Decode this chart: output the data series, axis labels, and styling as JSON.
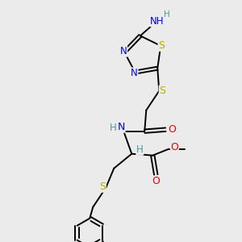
{
  "bg_color": "#ebebeb",
  "atom_colors": {
    "C": "#000000",
    "N": "#0000ee",
    "S": "#bbaa00",
    "O": "#ee0000",
    "H": "#4a9a9a"
  },
  "bond_color": "#000000",
  "font_size": 7.5,
  "fig_size": [
    3.0,
    3.0
  ],
  "dpi": 100
}
